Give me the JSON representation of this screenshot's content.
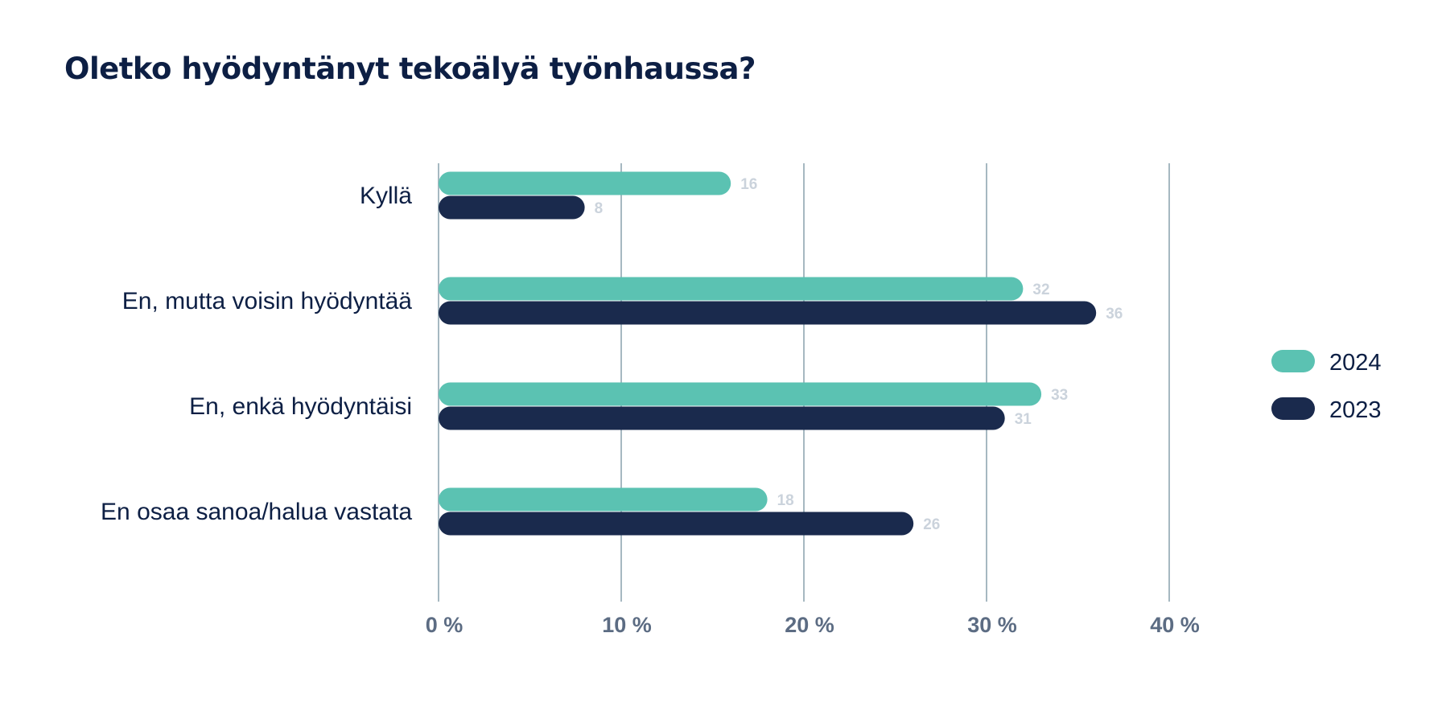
{
  "chart_data": {
    "type": "bar",
    "orientation": "horizontal",
    "title": "Oletko hyödyntänyt tekoälyä työnhaussa?",
    "categories": [
      "Kyllä",
      "En, mutta voisin hyödyntää",
      "En, enkä hyödyntäisi",
      "En osaa sanoa/halua vastata"
    ],
    "series": [
      {
        "name": "2024",
        "values": [
          16,
          32,
          33,
          18
        ],
        "color": "#5bc2b2"
      },
      {
        "name": "2023",
        "values": [
          8,
          36,
          31,
          26
        ],
        "color": "#1a2a4d"
      }
    ],
    "xlim": [
      0,
      40
    ],
    "xticks": [
      0,
      10,
      20,
      30,
      40
    ],
    "xtick_labels": [
      "0 %",
      "10 %",
      "20 %",
      "30 %",
      "40 %"
    ],
    "grid": true,
    "legend_position": "right",
    "data_labels": true
  }
}
